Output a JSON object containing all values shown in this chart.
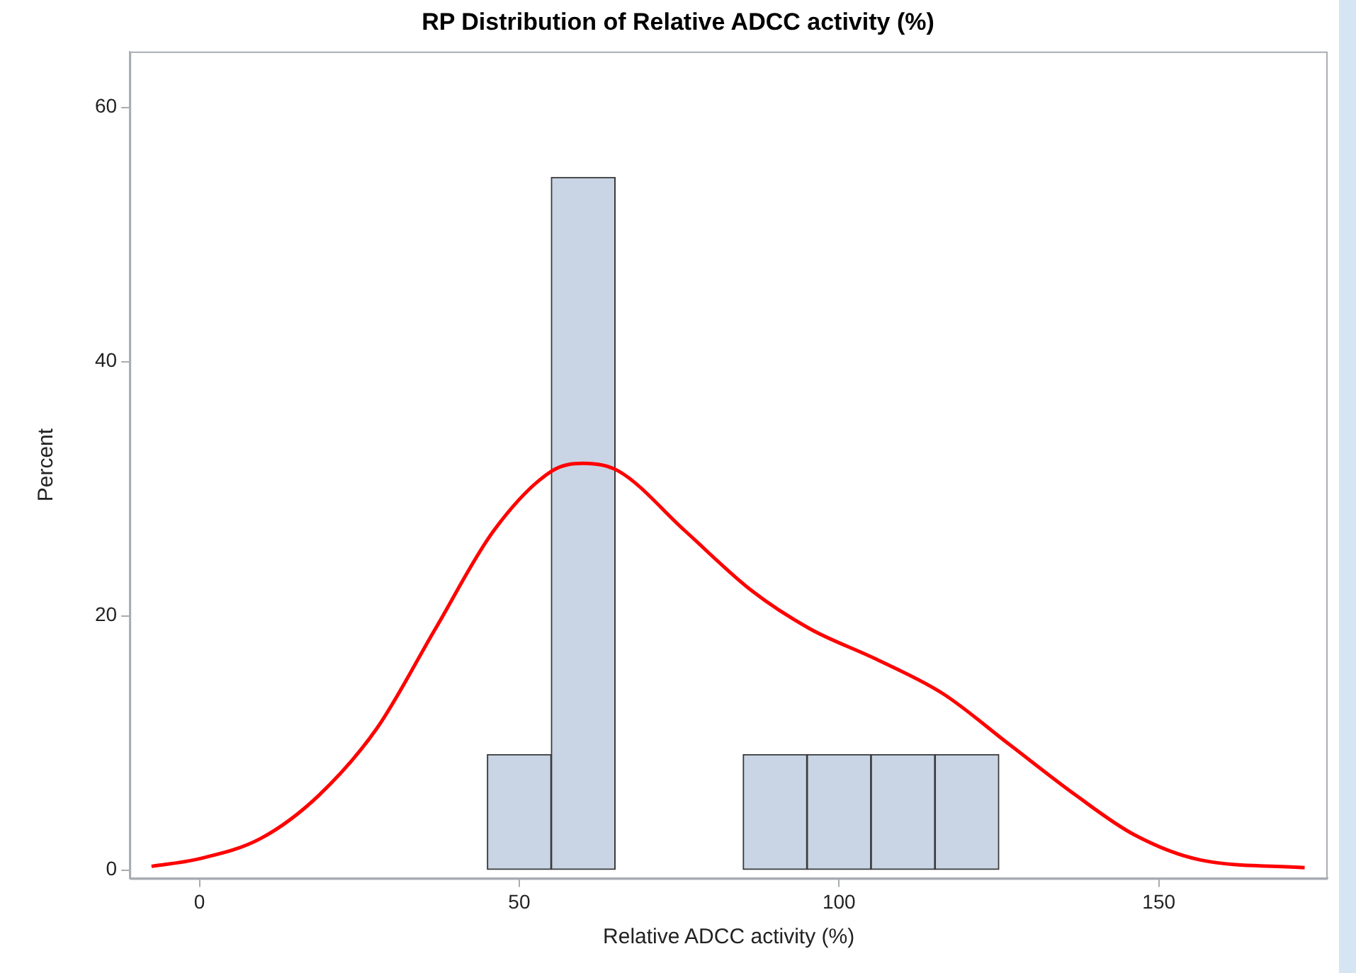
{
  "chart_data": {
    "type": "histogram",
    "title": "RP Distribution of Relative ADCC activity (%)",
    "xlabel": "Relative ADCC activity (%)",
    "ylabel": "Percent",
    "bins": [
      35,
      45,
      55,
      65,
      75,
      85,
      95,
      105,
      115,
      125
    ],
    "values": [
      0,
      9.1,
      54.5,
      0,
      0,
      9.1,
      9.1,
      9.1,
      9.1
    ],
    "color": "#c9d5e5",
    "series": [
      {
        "type": "line",
        "color": "#ff0000",
        "x": [
          -7.5,
          0,
          9.6,
          18.7,
          27.8,
          36.9,
          46,
          55.1,
          60,
          65.5,
          75.9,
          86.3,
          95.4,
          105.8,
          116.2,
          126.6,
          137,
          146.1,
          156.5,
          172.8
        ],
        "values": [
          0.3,
          0.9,
          2.5,
          5.9,
          11.2,
          19,
          26.7,
          31.4,
          32,
          31.4,
          26.7,
          22,
          19,
          16.6,
          13.9,
          9.9,
          5.9,
          2.8,
          0.8,
          0.2
        ]
      }
    ],
    "xlim": [
      -10.9,
      176.4
    ],
    "xticks": [
      0,
      50,
      100,
      150
    ],
    "ylim": [
      -0.65,
      64.4
    ],
    "yticks": [
      0,
      20,
      40,
      60
    ],
    "grid": false,
    "legend": false,
    "marker": "none",
    "line_style": "solid"
  }
}
